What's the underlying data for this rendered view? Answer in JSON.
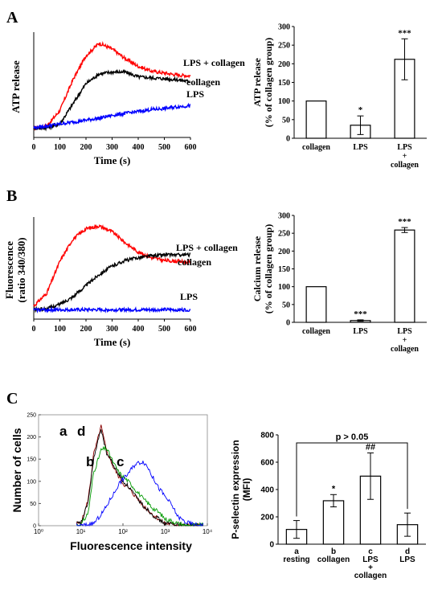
{
  "panels": [
    {
      "letter": "A"
    },
    {
      "letter": "B"
    },
    {
      "letter": "C"
    }
  ],
  "chart_data": [
    {
      "panel": "A",
      "type": "line",
      "ylabel": "ATP release",
      "xlabel": "Time (s)",
      "xticks": [
        "0",
        "100",
        "200",
        "300",
        "400",
        "500",
        "600"
      ],
      "xlim": [
        0,
        600
      ],
      "yticks": [],
      "series": [
        {
          "name": "LPS + collagen",
          "color": "#ff0000",
          "x": [
            0,
            50,
            100,
            150,
            200,
            250,
            300,
            350,
            400,
            450,
            500,
            550,
            600
          ],
          "y": [
            0.1,
            0.12,
            0.28,
            0.6,
            0.85,
            0.98,
            0.92,
            0.82,
            0.74,
            0.69,
            0.67,
            0.65,
            0.64
          ]
        },
        {
          "name": "collagen",
          "color": "#000000",
          "x": [
            0,
            50,
            100,
            150,
            200,
            250,
            300,
            350,
            400,
            450,
            500,
            550,
            600
          ],
          "y": [
            0.1,
            0.1,
            0.14,
            0.35,
            0.56,
            0.66,
            0.68,
            0.68,
            0.63,
            0.62,
            0.61,
            0.6,
            0.58
          ]
        },
        {
          "name": "LPS",
          "color": "#0000ff",
          "x": [
            0,
            50,
            100,
            150,
            200,
            250,
            300,
            350,
            400,
            450,
            500,
            550,
            600
          ],
          "y": [
            0.1,
            0.12,
            0.14,
            0.16,
            0.18,
            0.2,
            0.23,
            0.25,
            0.27,
            0.29,
            0.3,
            0.32,
            0.33
          ]
        }
      ]
    },
    {
      "panel": "A",
      "type": "bar",
      "ylabel": "ATP release (% of collagen group)",
      "categories": [
        "collagen",
        "LPS",
        "LPS + collagen"
      ],
      "values": [
        100,
        35,
        212
      ],
      "errors": [
        0,
        25,
        55
      ],
      "significance": [
        "",
        "*",
        "***"
      ],
      "ylim": [
        0,
        300
      ],
      "yticks": [
        "0",
        "50",
        "100",
        "150",
        "200",
        "250",
        "300"
      ]
    },
    {
      "panel": "B",
      "type": "line",
      "ylabel": "Fluorescence (ratio 340/380)",
      "xlabel": "Time (s)",
      "xticks": [
        "0",
        "100",
        "200",
        "300",
        "400",
        "500",
        "600"
      ],
      "xlim": [
        0,
        600
      ],
      "yticks": [],
      "series": [
        {
          "name": "LPS + collagen",
          "color": "#ff0000",
          "x": [
            0,
            50,
            100,
            150,
            200,
            250,
            300,
            350,
            400,
            450,
            500,
            550,
            600
          ],
          "y": [
            0.14,
            0.28,
            0.62,
            0.86,
            0.97,
            1.0,
            0.94,
            0.82,
            0.72,
            0.66,
            0.63,
            0.62,
            0.61
          ]
        },
        {
          "name": "collagen",
          "color": "#000000",
          "x": [
            0,
            50,
            100,
            150,
            200,
            250,
            300,
            350,
            400,
            450,
            500,
            550,
            600
          ],
          "y": [
            0.1,
            0.11,
            0.16,
            0.24,
            0.36,
            0.48,
            0.57,
            0.63,
            0.66,
            0.68,
            0.69,
            0.69,
            0.69
          ]
        },
        {
          "name": "LPS",
          "color": "#0000ff",
          "x": [
            0,
            50,
            100,
            150,
            200,
            250,
            300,
            350,
            400,
            450,
            500,
            550,
            600
          ],
          "y": [
            0.1,
            0.1,
            0.1,
            0.1,
            0.1,
            0.1,
            0.1,
            0.1,
            0.1,
            0.1,
            0.1,
            0.1,
            0.1
          ]
        }
      ]
    },
    {
      "panel": "B",
      "type": "bar",
      "ylabel": "Calcium release (% of collagen group)",
      "categories": [
        "collagen",
        "LPS",
        "LPS + collagen"
      ],
      "values": [
        100,
        5,
        259
      ],
      "errors": [
        0,
        2,
        7
      ],
      "significance": [
        "",
        "***",
        "***"
      ],
      "ylim": [
        0,
        300
      ],
      "yticks": [
        "0",
        "50",
        "100",
        "150",
        "200",
        "250",
        "300"
      ]
    },
    {
      "panel": "C",
      "type": "line",
      "ylabel": "Number of cells",
      "xlabel": "Fluorescence intensity",
      "xscale": "log",
      "xticks": [
        "10⁰",
        "10¹",
        "10²",
        "10³",
        "10⁴"
      ],
      "xlim": [
        1,
        10000
      ],
      "ylim": [
        0,
        250
      ],
      "yticks": [
        "0",
        "50",
        "100",
        "150",
        "200",
        "250"
      ],
      "series": [
        {
          "name": "a",
          "color": "#8b0000",
          "x": [
            10,
            15,
            20,
            30,
            40,
            60,
            80,
            100,
            200,
            300,
            500,
            800,
            1000,
            2000,
            3000
          ],
          "y": [
            5,
            60,
            160,
            225,
            170,
            130,
            110,
            95,
            65,
            45,
            25,
            10,
            5,
            2,
            0
          ]
        },
        {
          "name": "d",
          "color": "#000000",
          "x": [
            10,
            15,
            20,
            30,
            40,
            60,
            80,
            100,
            200,
            300,
            500,
            800,
            1000,
            2000,
            3000
          ],
          "y": [
            5,
            55,
            150,
            220,
            165,
            135,
            115,
            100,
            65,
            45,
            25,
            10,
            5,
            2,
            0
          ]
        },
        {
          "name": "b",
          "color": "#009900",
          "x": [
            10,
            15,
            20,
            30,
            40,
            60,
            80,
            100,
            200,
            300,
            500,
            800,
            1000,
            2000,
            3000
          ],
          "y": [
            2,
            30,
            120,
            170,
            175,
            140,
            120,
            110,
            80,
            60,
            40,
            25,
            15,
            5,
            1
          ]
        },
        {
          "name": "c",
          "color": "#0000ff",
          "x": [
            10,
            20,
            30,
            50,
            80,
            100,
            150,
            200,
            300,
            400,
            500,
            700,
            1000,
            2000,
            3000,
            5000
          ],
          "y": [
            0,
            5,
            25,
            60,
            95,
            105,
            125,
            140,
            145,
            130,
            110,
            85,
            65,
            20,
            8,
            2
          ]
        }
      ],
      "annotations": [
        "a",
        "d",
        "b",
        "c"
      ]
    },
    {
      "panel": "C",
      "type": "bar",
      "ylabel": "P-selectin expression (MFI)",
      "categories": [
        [
          "a",
          "resting"
        ],
        [
          "b",
          "collagen"
        ],
        [
          "c",
          "LPS",
          "+",
          "collagen"
        ],
        [
          "d",
          "LPS"
        ]
      ],
      "values": [
        108,
        318,
        498,
        143
      ],
      "errors": [
        65,
        45,
        170,
        85
      ],
      "significance": [
        "",
        "*",
        "##",
        ""
      ],
      "ylim": [
        0,
        800
      ],
      "yticks": [
        "0",
        "200",
        "400",
        "600",
        "800"
      ],
      "bracket": "p > 0.05"
    }
  ]
}
